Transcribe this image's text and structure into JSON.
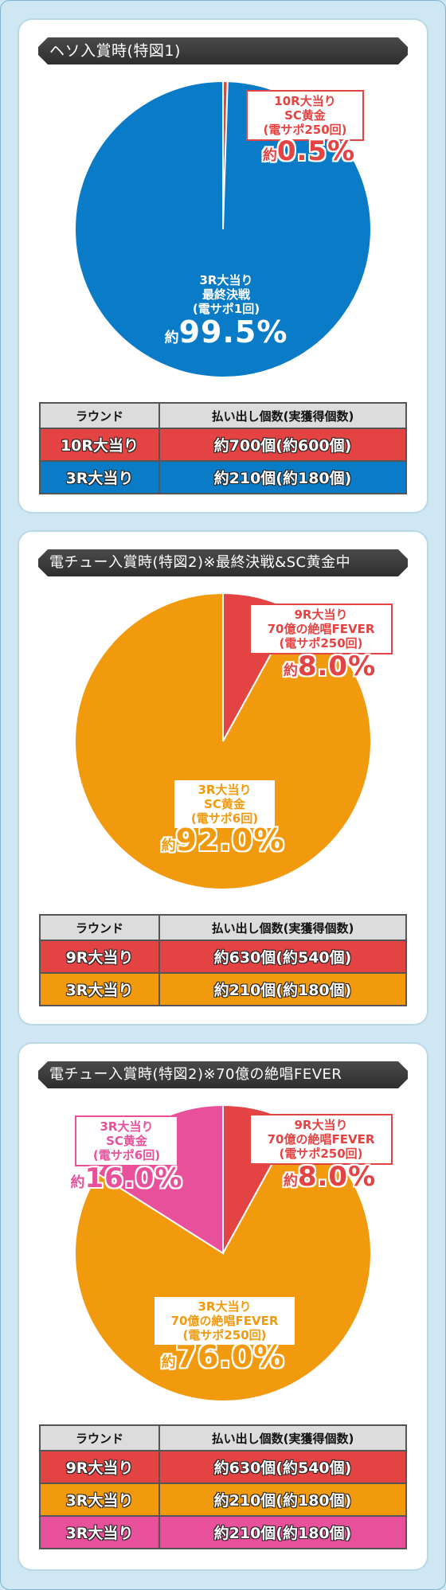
{
  "colors": {
    "red": "#e34443",
    "blue": "#0a7bc6",
    "orange": "#f29a0e",
    "pink": "#e9509b",
    "title_bg": "#3a3a3a"
  },
  "table_headers": {
    "round": "ラウンド",
    "payout": "払い出し個数(実獲得個数)"
  },
  "chart_data": [
    {
      "type": "pie",
      "title": "ヘソ入賞時(特図1)",
      "slices": [
        {
          "label": [
            "10R大当り",
            "SC黄金",
            "(電サポ250回)"
          ],
          "prefix": "約",
          "pct_text": "0.5%",
          "value": 0.5,
          "color": "#e34443"
        },
        {
          "label": [
            "3R大当り",
            "最終決戦",
            "(電サポ1回)"
          ],
          "prefix": "約",
          "pct_text": "99.5%",
          "value": 99.5,
          "color": "#0a7bc6"
        }
      ],
      "table": [
        {
          "round": "10R大当り",
          "payout": "約700個(約600個)",
          "color": "#e34443"
        },
        {
          "round": "3R大当り",
          "payout": "約210個(約180個)",
          "color": "#0a7bc6"
        }
      ]
    },
    {
      "type": "pie",
      "title": "電チュー入賞時(特図2)※最終決戦&SC黄金中",
      "slices": [
        {
          "label": [
            "9R大当り",
            "70億の絶唱FEVER",
            "(電サポ250回)"
          ],
          "prefix": "約",
          "pct_text": "8.0%",
          "value": 8.0,
          "color": "#e34443"
        },
        {
          "label": [
            "3R大当り",
            "SC黄金",
            "(電サポ6回)"
          ],
          "prefix": "約",
          "pct_text": "92.0%",
          "value": 92.0,
          "color": "#f29a0e"
        }
      ],
      "table": [
        {
          "round": "9R大当り",
          "payout": "約630個(約540個)",
          "color": "#e34443"
        },
        {
          "round": "3R大当り",
          "payout": "約210個(約180個)",
          "color": "#f29a0e"
        }
      ]
    },
    {
      "type": "pie",
      "title": "電チュー入賞時(特図2)※70億の絶唱FEVER",
      "slices": [
        {
          "label": [
            "9R大当り",
            "70億の絶唱FEVER",
            "(電サポ250回)"
          ],
          "prefix": "約",
          "pct_text": "8.0%",
          "value": 8.0,
          "color": "#e34443"
        },
        {
          "label": [
            "3R大当り",
            "70億の絶唱FEVER",
            "(電サポ250回)"
          ],
          "prefix": "約",
          "pct_text": "76.0%",
          "value": 76.0,
          "color": "#f29a0e"
        },
        {
          "label": [
            "3R大当り",
            "SC黄金",
            "(電サポ6回)"
          ],
          "prefix": "約",
          "pct_text": "16.0%",
          "value": 16.0,
          "color": "#e9509b"
        }
      ],
      "table": [
        {
          "round": "9R大当り",
          "payout": "約630個(約540個)",
          "color": "#e34443"
        },
        {
          "round": "3R大当り",
          "payout": "約210個(約180個)",
          "color": "#f29a0e"
        },
        {
          "round": "3R大当り",
          "payout": "約210個(約180個)",
          "color": "#e9509b"
        }
      ]
    }
  ]
}
